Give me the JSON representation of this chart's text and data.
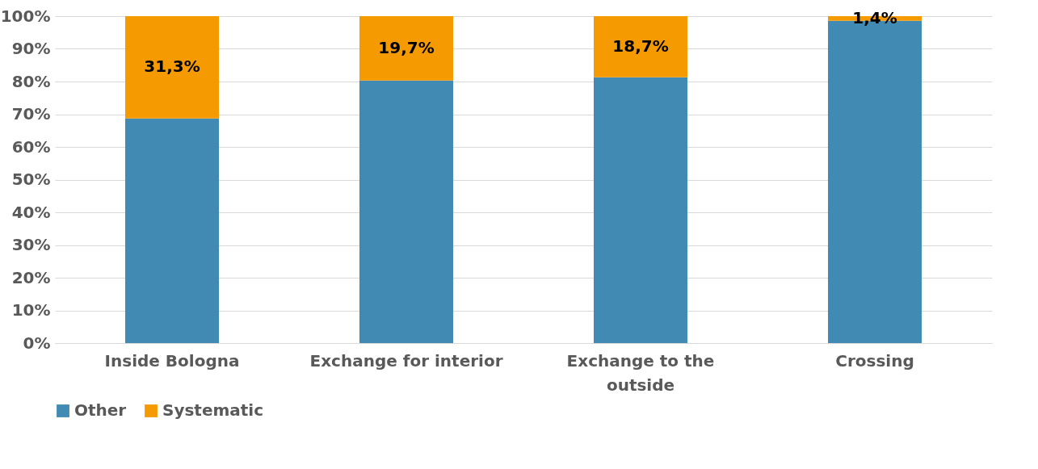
{
  "chart_data": {
    "type": "bar",
    "stacked": true,
    "categories": [
      "Inside Bologna",
      "Exchange for interior",
      "Exchange to the outside",
      "Crossing"
    ],
    "series": [
      {
        "name": "Other",
        "color": "#418ab3",
        "values": [
          68.7,
          80.3,
          81.3,
          98.6
        ]
      },
      {
        "name": "Systematic",
        "color": "#f59a00",
        "values": [
          31.3,
          19.7,
          18.7,
          1.4
        ],
        "value_labels": [
          "31,3%",
          "19,7%",
          "18,7%",
          "1,4%"
        ]
      }
    ],
    "ylim": [
      0,
      100
    ],
    "yticks": [
      {
        "value": 0,
        "label": "0%"
      },
      {
        "value": 10,
        "label": "10%"
      },
      {
        "value": 20,
        "label": "20%"
      },
      {
        "value": 30,
        "label": "30%"
      },
      {
        "value": 40,
        "label": "40%"
      },
      {
        "value": 50,
        "label": "50%"
      },
      {
        "value": 60,
        "label": "60%"
      },
      {
        "value": 70,
        "label": "70%"
      },
      {
        "value": 80,
        "label": "80%"
      },
      {
        "value": 90,
        "label": "90%"
      },
      {
        "value": 100,
        "label": "100%"
      }
    ],
    "grid": "y",
    "legend": "bottom"
  }
}
